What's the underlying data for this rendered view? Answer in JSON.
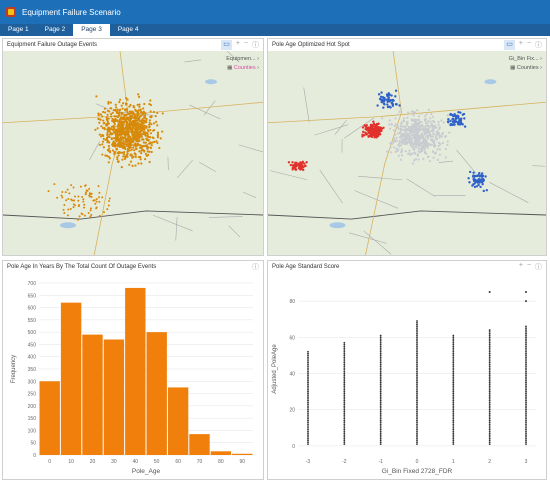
{
  "app": {
    "title": "Equipment Failure Scenario"
  },
  "tabs": [
    {
      "label": "Page 1"
    },
    {
      "label": "Page 2"
    },
    {
      "label": "Page 3"
    },
    {
      "label": "Page 4"
    }
  ],
  "panels": {
    "map1": {
      "title": "Equipment Failure Outage Events",
      "legend_a": "Equipmen...",
      "legend_b": "Counties"
    },
    "map2": {
      "title": "Pole Age Optimized Hot Spot",
      "legend_a": "Gi_Bin Fix...",
      "legend_b": "Counties"
    },
    "histogram": {
      "title": "Pole Age In Years By The Total Count Of Outage Events"
    },
    "scatter": {
      "title": "Pole Age Standard Score"
    }
  },
  "icons": {
    "tool_select": "select-icon",
    "tool_add": "plus-icon",
    "tool_remove": "minus-icon",
    "tool_info": "info-icon"
  },
  "colors": {
    "header": "#1d6fb8",
    "tabs": "#1f5f9c",
    "outage_dots": "#d78a0a",
    "hist_bar": "#f07f0c",
    "hot": "#e0322b",
    "cold": "#2f62c8"
  },
  "chart_data": [
    {
      "type": "bar",
      "title": "",
      "xlabel": "Pole_Age",
      "ylabel": "Frequency",
      "bin_edges": [
        0,
        10,
        20,
        30,
        40,
        50,
        60,
        70,
        80,
        90,
        100
      ],
      "categories": [
        "0-10",
        "10-20",
        "20-30",
        "30-40",
        "40-50",
        "50-60",
        "60-70",
        "70-80",
        "80-90",
        "90-100"
      ],
      "values": [
        300,
        620,
        490,
        470,
        680,
        500,
        275,
        85,
        15,
        5
      ],
      "ylim": [
        0,
        700
      ],
      "yticks": [
        0,
        50,
        100,
        150,
        200,
        250,
        300,
        350,
        400,
        450,
        500,
        550,
        600,
        650,
        700
      ],
      "xticks": [
        0,
        10,
        20,
        30,
        40,
        50,
        60,
        70,
        80,
        90
      ],
      "grid": true
    },
    {
      "type": "scatter",
      "title": "",
      "xlabel": "Gi_Bin Fixed 2728_FDR",
      "ylabel": "Adjusted_PoleAge",
      "categories": [
        -3,
        -2,
        -1,
        0,
        1,
        2,
        3
      ],
      "xlim": [
        -3,
        3
      ],
      "ylim": [
        -5,
        90
      ],
      "yticks": [
        0,
        20,
        40,
        60,
        80
      ],
      "series_ranges": [
        {
          "x": -3,
          "min": 1,
          "max": 52
        },
        {
          "x": -2,
          "min": 1,
          "max": 57
        },
        {
          "x": -1,
          "min": 1,
          "max": 61
        },
        {
          "x": 0,
          "min": 1,
          "max": 69
        },
        {
          "x": 1,
          "min": 1,
          "max": 61
        },
        {
          "x": 2,
          "min": 1,
          "max": 64
        },
        {
          "x": 3,
          "min": 1,
          "max": 66
        }
      ],
      "outliers": [
        {
          "x": 2,
          "y": 85
        },
        {
          "x": 3,
          "y": 85
        },
        {
          "x": 3,
          "y": 80
        }
      ],
      "grid": true
    }
  ]
}
